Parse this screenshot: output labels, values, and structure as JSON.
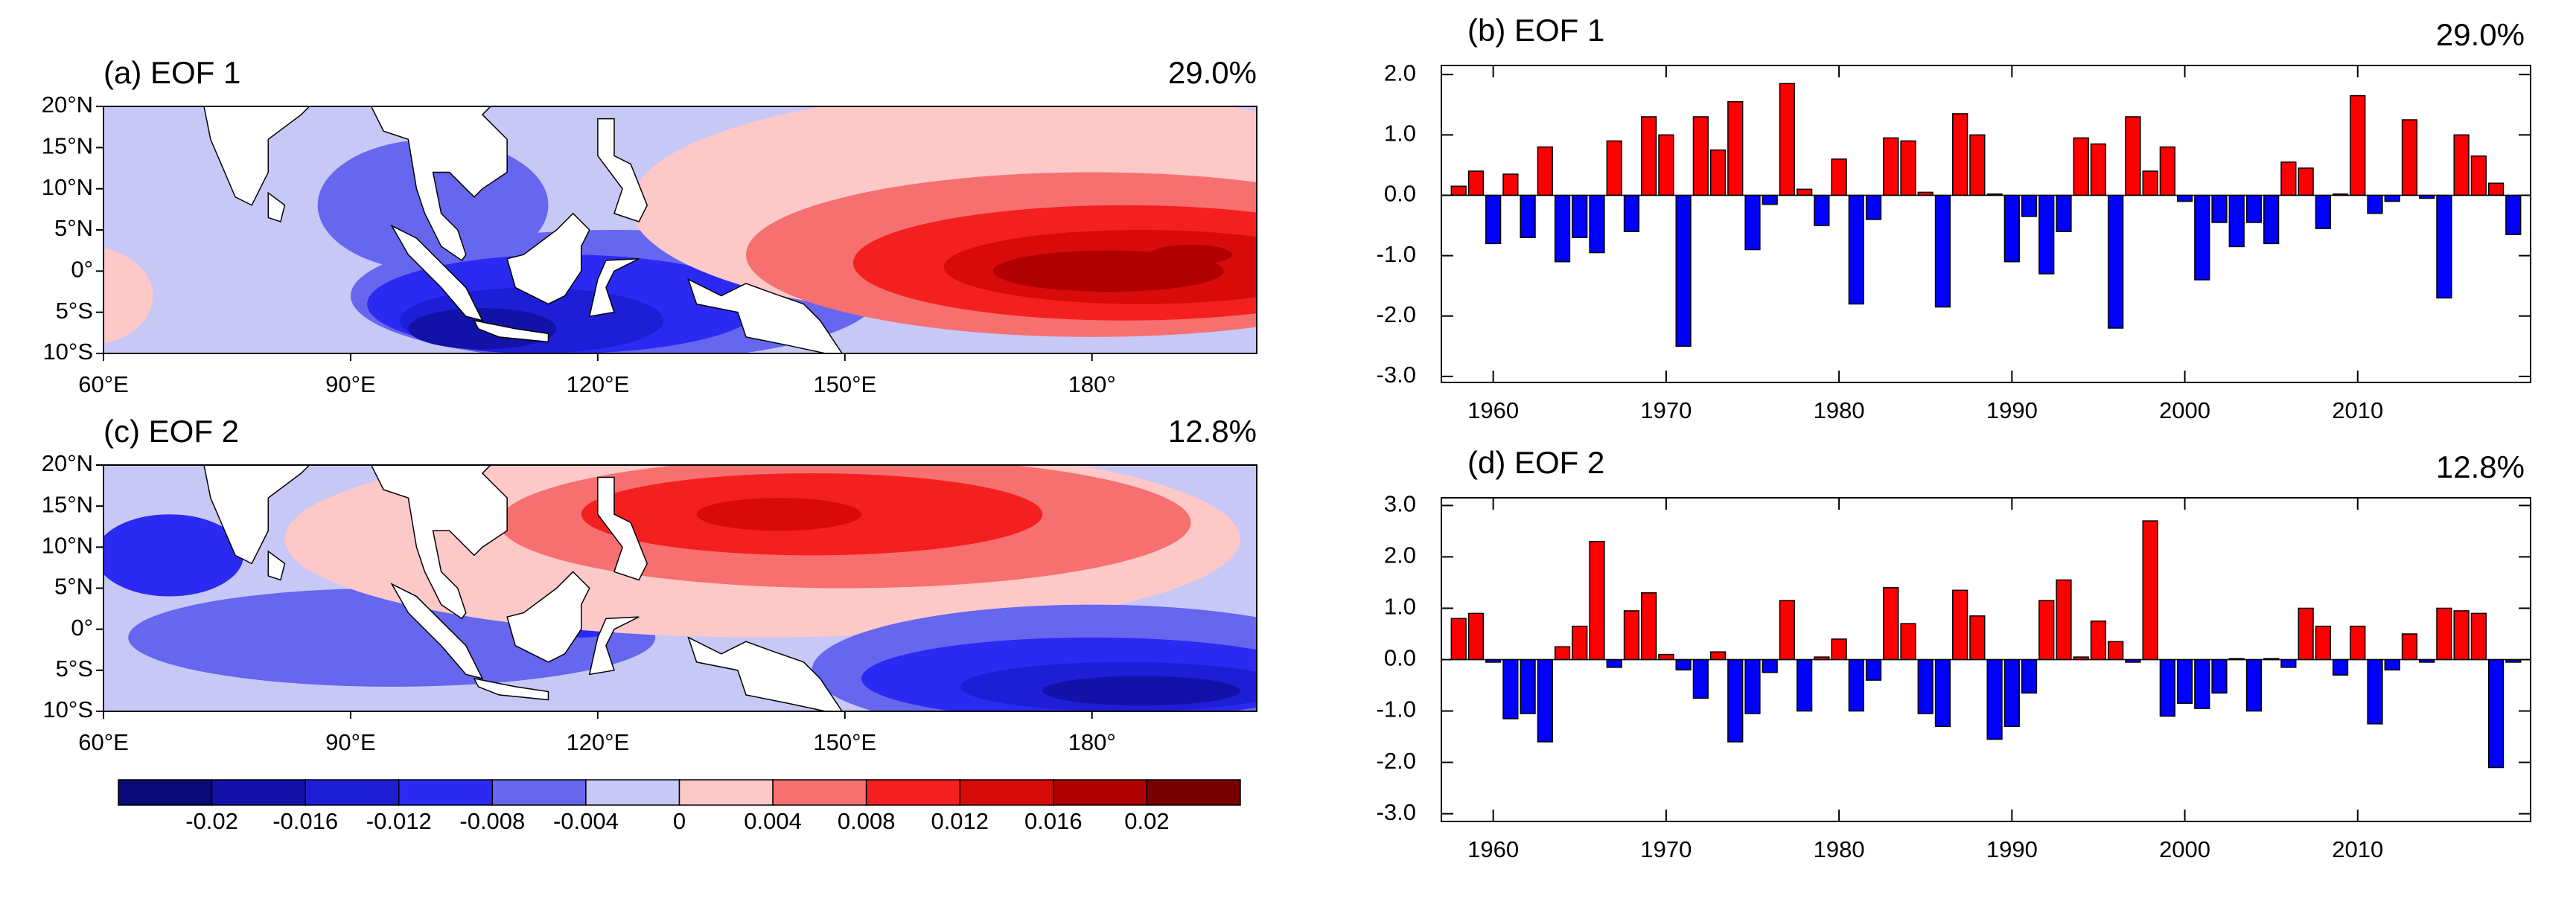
{
  "chart_data": [
    {
      "type": "map",
      "title": "(a) EOF 1",
      "percent": "29.0%",
      "xlim": [
        60,
        200
      ],
      "xticks": [
        {
          "value": 60,
          "label": "60°E"
        },
        {
          "value": 90,
          "label": "90°E"
        },
        {
          "value": 120,
          "label": "120°E"
        },
        {
          "value": 150,
          "label": "150°E"
        },
        {
          "value": 180,
          "label": "180°"
        }
      ],
      "ylim": [
        -10,
        20
      ],
      "yticks": [
        {
          "value": 20,
          "label": "20°N"
        },
        {
          "value": 15,
          "label": "15°N"
        },
        {
          "value": 10,
          "label": "10°N"
        },
        {
          "value": 5,
          "label": "5°N"
        },
        {
          "value": 0,
          "label": "0°"
        },
        {
          "value": -5,
          "label": "5°S"
        },
        {
          "value": -10,
          "label": "10°S"
        }
      ]
    },
    {
      "type": "bar",
      "title": "(b) EOF 1",
      "percent": "29.0%",
      "x": [
        1958,
        1959,
        1960,
        1961,
        1962,
        1963,
        1964,
        1965,
        1966,
        1967,
        1968,
        1969,
        1970,
        1971,
        1972,
        1973,
        1974,
        1975,
        1976,
        1977,
        1978,
        1979,
        1980,
        1981,
        1982,
        1983,
        1984,
        1985,
        1986,
        1987,
        1988,
        1989,
        1990,
        1991,
        1992,
        1993,
        1994,
        1995,
        1996,
        1997,
        1998,
        1999,
        2000,
        2001,
        2002,
        2003,
        2004,
        2005,
        2006,
        2007,
        2008,
        2009,
        2010,
        2011,
        2012,
        2013,
        2014,
        2015,
        2016,
        2017,
        2018,
        2019
      ],
      "values": [
        0.15,
        0.4,
        -0.8,
        0.35,
        -0.7,
        0.8,
        -1.1,
        -0.7,
        -0.95,
        0.9,
        -0.6,
        1.3,
        1.0,
        -2.5,
        1.3,
        0.75,
        1.55,
        -0.9,
        -0.15,
        1.85,
        0.1,
        -0.5,
        0.6,
        -1.8,
        -0.4,
        0.95,
        0.9,
        0.05,
        -1.85,
        1.35,
        1.0,
        0.02,
        -1.1,
        -0.35,
        -1.3,
        -0.6,
        0.95,
        0.85,
        -2.2,
        1.3,
        0.4,
        0.8,
        -0.1,
        -1.4,
        -0.45,
        -0.85,
        -0.45,
        -0.8,
        0.55,
        0.45,
        -0.55,
        0.02,
        1.65,
        -0.3,
        -0.1,
        1.25,
        -0.05,
        -1.7,
        1.0,
        0.65,
        0.2,
        -0.65
      ],
      "positive_color": "#ff0000",
      "negative_color": "#0000ff",
      "xlim": [
        1957,
        2020
      ],
      "xticks": [
        1960,
        1970,
        1980,
        1990,
        2000,
        2010
      ],
      "ylim": [
        -3.1,
        2.15
      ],
      "yticks": [
        {
          "value": 2,
          "label": "2.0"
        },
        {
          "value": 1,
          "label": "1.0"
        },
        {
          "value": 0,
          "label": "0.0"
        },
        {
          "value": -1,
          "label": "-1.0"
        },
        {
          "value": -2,
          "label": "-2.0"
        },
        {
          "value": -3,
          "label": "-3.0"
        }
      ]
    },
    {
      "type": "map",
      "title": "(c) EOF 2",
      "percent": "12.8%",
      "xlim": [
        60,
        200
      ],
      "xticks": [
        {
          "value": 60,
          "label": "60°E"
        },
        {
          "value": 90,
          "label": "90°E"
        },
        {
          "value": 120,
          "label": "120°E"
        },
        {
          "value": 150,
          "label": "150°E"
        },
        {
          "value": 180,
          "label": "180°"
        }
      ],
      "ylim": [
        -10,
        20
      ],
      "yticks": [
        {
          "value": 20,
          "label": "20°N"
        },
        {
          "value": 15,
          "label": "15°N"
        },
        {
          "value": 10,
          "label": "10°N"
        },
        {
          "value": 5,
          "label": "5°N"
        },
        {
          "value": 0,
          "label": "0°"
        },
        {
          "value": -5,
          "label": "5°S"
        },
        {
          "value": -10,
          "label": "10°S"
        }
      ]
    },
    {
      "type": "bar",
      "title": "(d) EOF 2",
      "percent": "12.8%",
      "x": [
        1958,
        1959,
        1960,
        1961,
        1962,
        1963,
        1964,
        1965,
        1966,
        1967,
        1968,
        1969,
        1970,
        1971,
        1972,
        1973,
        1974,
        1975,
        1976,
        1977,
        1978,
        1979,
        1980,
        1981,
        1982,
        1983,
        1984,
        1985,
        1986,
        1987,
        1988,
        1989,
        1990,
        1991,
        1992,
        1993,
        1994,
        1995,
        1996,
        1997,
        1998,
        1999,
        2000,
        2001,
        2002,
        2003,
        2004,
        2005,
        2006,
        2007,
        2008,
        2009,
        2010,
        2011,
        2012,
        2013,
        2014,
        2015,
        2016,
        2017,
        2018,
        2019
      ],
      "values": [
        0.8,
        0.9,
        -0.05,
        -1.15,
        -1.05,
        -1.6,
        0.25,
        0.65,
        2.3,
        -0.15,
        0.95,
        1.3,
        0.1,
        -0.2,
        -0.75,
        0.15,
        -1.6,
        -1.05,
        -0.25,
        1.15,
        -1.0,
        0.05,
        0.4,
        -1.0,
        -0.4,
        1.4,
        0.7,
        -1.05,
        -1.3,
        1.35,
        0.85,
        -1.55,
        -1.3,
        -0.65,
        1.15,
        1.55,
        0.05,
        0.75,
        0.35,
        -0.05,
        2.7,
        -1.1,
        -0.85,
        -0.95,
        -0.65,
        0.02,
        -1.0,
        0.02,
        -0.15,
        1.0,
        0.65,
        -0.3,
        0.65,
        -1.25,
        -0.2,
        0.5,
        -0.05,
        1.0,
        0.95,
        0.9,
        -2.1,
        -0.05
      ],
      "positive_color": "#ff0000",
      "negative_color": "#0000ff",
      "xlim": [
        1957,
        2020
      ],
      "xticks": [
        1960,
        1970,
        1980,
        1990,
        2000,
        2010
      ],
      "ylim": [
        -3.15,
        3.15
      ],
      "yticks": [
        {
          "value": 3,
          "label": "3.0"
        },
        {
          "value": 2,
          "label": "2.0"
        },
        {
          "value": 1,
          "label": "1.0"
        },
        {
          "value": 0,
          "label": "0.0"
        },
        {
          "value": -1,
          "label": "-1.0"
        },
        {
          "value": -2,
          "label": "-2.0"
        },
        {
          "value": -3,
          "label": "-3.0"
        }
      ]
    }
  ],
  "colorbar": {
    "levels": [
      -0.02,
      -0.016,
      -0.012,
      -0.008,
      -0.004,
      0,
      0.004,
      0.008,
      0.012,
      0.016,
      0.02
    ],
    "colors": [
      "#0a0a78",
      "#1212a8",
      "#1e1ed6",
      "#2a2af2",
      "#6666ee",
      "#c8c8f6",
      "#fcc8c8",
      "#f67070",
      "#f42020",
      "#d80a0a",
      "#b00000",
      "#780000"
    ]
  }
}
